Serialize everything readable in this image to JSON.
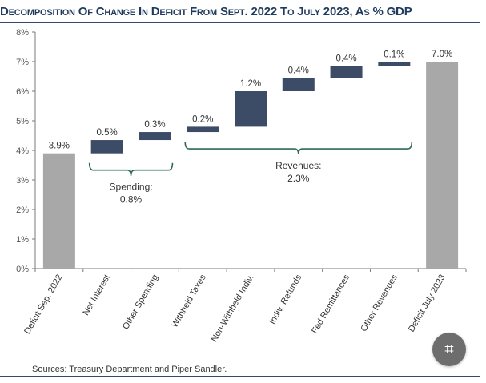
{
  "title": "Decomposition Of Change In Deficit From Sept. 2022 To July 2023, As % GDP",
  "source": "Sources: Treasury Department and Piper Sandler.",
  "scan_button_icon": "text-scan-icon",
  "colors": {
    "total": "#a8a8a8",
    "component": "#3c4b66",
    "brace": "#2e6b55",
    "title": "#1f3b5c"
  },
  "chart_data": {
    "type": "bar",
    "subtype": "waterfall",
    "title": "Decomposition Of Change In Deficit From Sept. 2022 To July 2023, As % GDP",
    "xlabel": "",
    "ylabel": "",
    "ylim": [
      0,
      8
    ],
    "yticks": [
      "0%",
      "1%",
      "2%",
      "3%",
      "4%",
      "5%",
      "6%",
      "7%",
      "8%"
    ],
    "categories": [
      "Deficit Sep. 2022",
      "Net Interest",
      "Other Spending",
      "Withheld Taxes",
      "Non-Withheld Indiv.",
      "Indiv. Refunds",
      "Fed Remittances",
      "Other Revenues",
      "Deficit July 2023"
    ],
    "bars": [
      {
        "label": "3.9%",
        "start": 0,
        "end": 3.9,
        "kind": "total"
      },
      {
        "label": "0.5%",
        "start": 3.9,
        "end": 4.35,
        "kind": "component"
      },
      {
        "label": "0.3%",
        "start": 4.35,
        "end": 4.62,
        "kind": "component"
      },
      {
        "label": "0.2%",
        "start": 4.62,
        "end": 4.8,
        "kind": "component"
      },
      {
        "label": "1.2%",
        "start": 4.8,
        "end": 6.0,
        "kind": "component"
      },
      {
        "label": "0.4%",
        "start": 6.0,
        "end": 6.45,
        "kind": "component"
      },
      {
        "label": "0.4%",
        "start": 6.45,
        "end": 6.85,
        "kind": "component"
      },
      {
        "label": "0.1%",
        "start": 6.85,
        "end": 6.98,
        "kind": "component"
      },
      {
        "label": "7.0%",
        "start": 0,
        "end": 7.0,
        "kind": "total"
      }
    ],
    "groups": [
      {
        "name": "Spending:",
        "value": "0.8%",
        "from": 1,
        "to": 2,
        "position": "below"
      },
      {
        "name": "Revenues:",
        "value": "2.3%",
        "from": 3,
        "to": 7,
        "position": "below"
      }
    ],
    "grid": false,
    "legend": "none"
  }
}
